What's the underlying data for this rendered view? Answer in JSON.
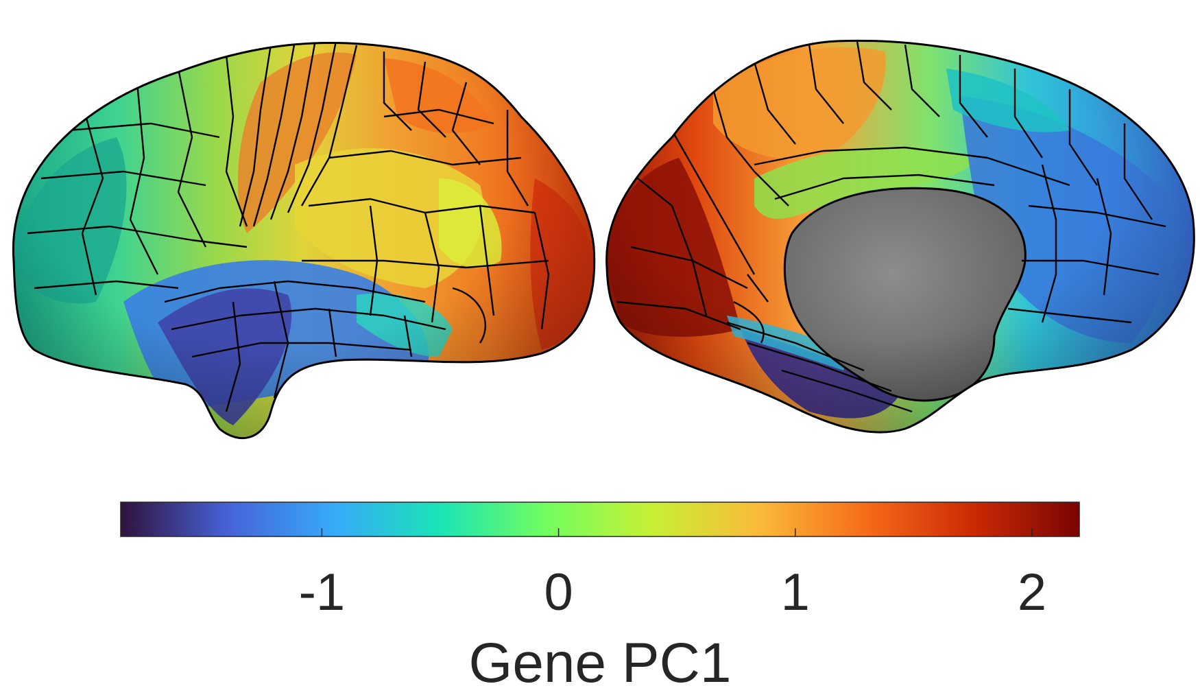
{
  "figure": {
    "views": [
      "lateral",
      "medial"
    ],
    "colormap": "turbo",
    "medial_wall_color": "#7f7f7f",
    "parcel_border_color": "#000000"
  },
  "colorbar": {
    "label": "Gene PC1",
    "range": [
      -1.85,
      2.2
    ],
    "ticks": [
      {
        "value": -1,
        "label": "-1"
      },
      {
        "value": 0,
        "label": "0"
      },
      {
        "value": 1,
        "label": "1"
      },
      {
        "value": 2,
        "label": "2"
      }
    ],
    "stops": [
      "#30123b",
      "#4662d7",
      "#36aaf9",
      "#1ae4b6",
      "#72fe5e",
      "#c8ef34",
      "#faba39",
      "#f66b19",
      "#cb2a04",
      "#7a0403"
    ]
  }
}
